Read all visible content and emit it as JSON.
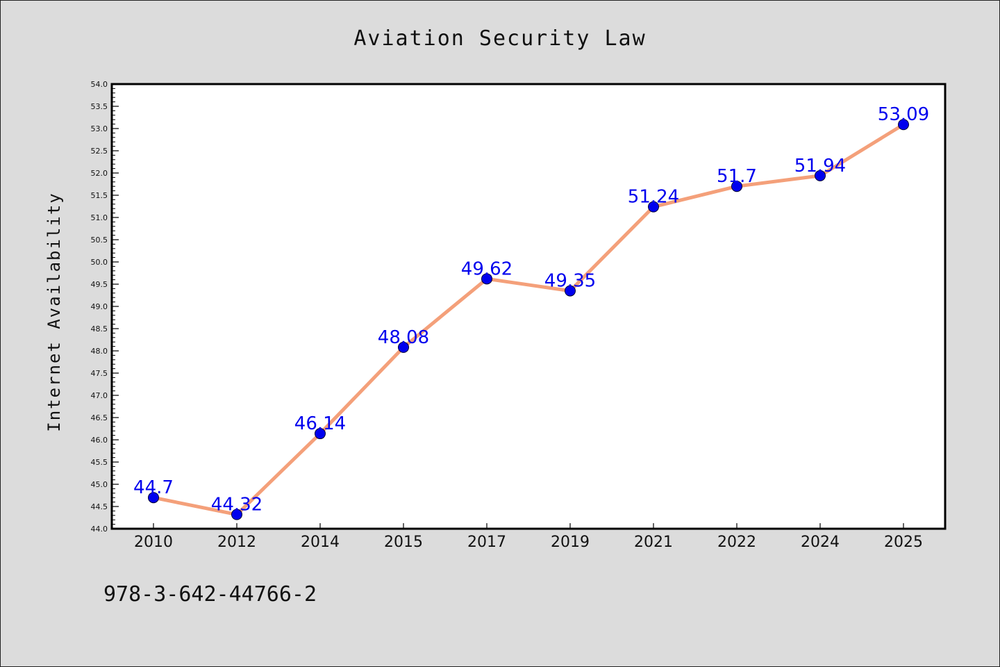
{
  "chart_data": {
    "type": "line",
    "title": "Aviation Security Law",
    "xlabel": "",
    "ylabel": "Internet Availability",
    "categories": [
      "2010",
      "2012",
      "2014",
      "2015",
      "2017",
      "2019",
      "2021",
      "2022",
      "2024",
      "2025"
    ],
    "series": [
      {
        "values": [
          44.7,
          44.32,
          46.14,
          48.08,
          49.62,
          49.35,
          51.24,
          51.7,
          51.94,
          53.09
        ],
        "labels": [
          "44.7",
          "44.32",
          "46.14",
          "48.08",
          "49.62",
          "49.35",
          "51.24",
          "51.7",
          "51.94",
          "53.09"
        ]
      }
    ],
    "ylim": [
      44.0,
      54.0
    ],
    "yticks": [
      "44.0",
      "44.5",
      "45.0",
      "45.5",
      "46.0",
      "46.5",
      "47.0",
      "47.5",
      "48.0",
      "48.5",
      "49.0",
      "49.5",
      "50.0",
      "50.5",
      "51.0",
      "51.5",
      "52.0",
      "52.5",
      "53.0",
      "53.5",
      "54.0"
    ],
    "grid": false,
    "legend": "none",
    "colors": {
      "line": "#f4a07a",
      "marker": "#0000ee",
      "label": "#0000ee",
      "background": "#dcdcdc",
      "plot_background": "#ffffff"
    }
  },
  "footer_text": "978-3-642-44766-2"
}
